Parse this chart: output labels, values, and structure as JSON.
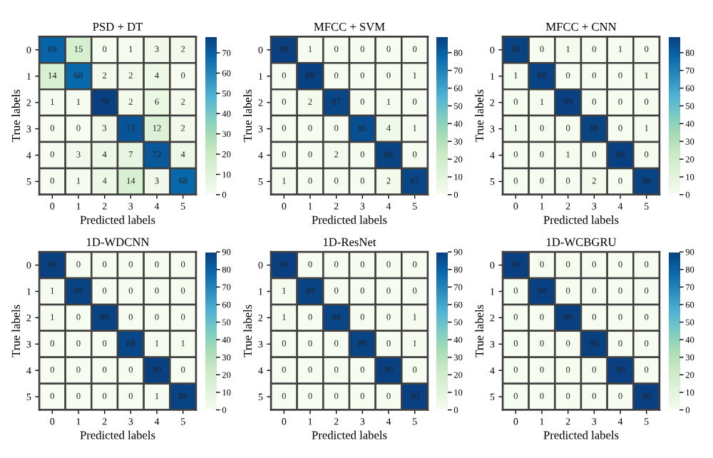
{
  "chart_data": [
    {
      "type": "heatmap",
      "title": "PSD + DT",
      "xlabel": "Predicted labels",
      "ylabel": "True labels",
      "categories": [
        "0",
        "1",
        "2",
        "3",
        "4",
        "5"
      ],
      "y_categories": [
        "0",
        "1",
        "2",
        "3",
        "4",
        "5"
      ],
      "cells": [
        [
          69,
          15,
          0,
          1,
          3,
          2
        ],
        [
          14,
          68,
          2,
          2,
          4,
          0
        ],
        [
          1,
          1,
          78,
          2,
          6,
          2
        ],
        [
          0,
          0,
          3,
          73,
          12,
          2
        ],
        [
          0,
          3,
          4,
          7,
          72,
          4
        ],
        [
          0,
          1,
          4,
          14,
          3,
          68
        ]
      ],
      "clim": [
        0,
        78
      ],
      "cticks": [
        0,
        10,
        20,
        30,
        40,
        50,
        60,
        70
      ],
      "data_labels": true
    },
    {
      "type": "heatmap",
      "title": "MFCC + SVM",
      "xlabel": "Predicted labels",
      "ylabel": "True labels",
      "categories": [
        "0",
        "1",
        "2",
        "3",
        "4",
        "5"
      ],
      "y_categories": [
        "0",
        "1",
        "2",
        "3",
        "4",
        "5"
      ],
      "cells": [
        [
          89,
          1,
          0,
          0,
          0,
          0
        ],
        [
          0,
          89,
          0,
          0,
          0,
          1
        ],
        [
          0,
          2,
          87,
          0,
          1,
          0
        ],
        [
          0,
          0,
          0,
          85,
          4,
          1
        ],
        [
          0,
          0,
          2,
          0,
          88,
          0
        ],
        [
          1,
          0,
          0,
          0,
          2,
          87
        ]
      ],
      "clim": [
        0,
        89
      ],
      "cticks": [
        0,
        10,
        20,
        30,
        40,
        50,
        60,
        70,
        80
      ],
      "data_labels": true
    },
    {
      "type": "heatmap",
      "title": "MFCC + CNN",
      "xlabel": "Predicted labels",
      "ylabel": "True labels",
      "categories": [
        "0",
        "1",
        "2",
        "3",
        "4",
        "5"
      ],
      "y_categories": [
        "0",
        "1",
        "2",
        "3",
        "4",
        "5"
      ],
      "cells": [
        [
          88,
          0,
          1,
          0,
          1,
          0
        ],
        [
          1,
          88,
          0,
          0,
          0,
          1
        ],
        [
          0,
          1,
          89,
          0,
          0,
          0
        ],
        [
          1,
          0,
          0,
          88,
          0,
          1
        ],
        [
          0,
          0,
          1,
          0,
          89,
          0
        ],
        [
          0,
          0,
          0,
          2,
          0,
          88
        ]
      ],
      "clim": [
        0,
        89
      ],
      "cticks": [
        0,
        10,
        20,
        30,
        40,
        50,
        60,
        70,
        80
      ],
      "data_labels": true
    },
    {
      "type": "heatmap",
      "title": "1D-WDCNN",
      "xlabel": "Predicted labels",
      "ylabel": "True labels",
      "categories": [
        "0",
        "1",
        "2",
        "3",
        "4",
        "5"
      ],
      "y_categories": [
        "0",
        "1",
        "2",
        "3",
        "4",
        "5"
      ],
      "cells": [
        [
          90,
          0,
          0,
          0,
          0,
          0
        ],
        [
          1,
          89,
          0,
          0,
          0,
          0
        ],
        [
          1,
          0,
          89,
          0,
          0,
          0
        ],
        [
          0,
          0,
          0,
          88,
          1,
          1
        ],
        [
          0,
          0,
          0,
          0,
          90,
          0
        ],
        [
          0,
          0,
          0,
          0,
          1,
          89
        ]
      ],
      "clim": [
        0,
        90
      ],
      "cticks": [
        0,
        10,
        20,
        30,
        40,
        50,
        60,
        70,
        80,
        90
      ],
      "data_labels": true
    },
    {
      "type": "heatmap",
      "title": "1D-ResNet",
      "xlabel": "Predicted labels",
      "ylabel": "True labels",
      "categories": [
        "0",
        "1",
        "2",
        "3",
        "4",
        "5"
      ],
      "y_categories": [
        "0",
        "1",
        "2",
        "3",
        "4",
        "5"
      ],
      "cells": [
        [
          90,
          0,
          0,
          0,
          0,
          0
        ],
        [
          1,
          89,
          0,
          0,
          0,
          0
        ],
        [
          1,
          0,
          88,
          0,
          0,
          1
        ],
        [
          0,
          0,
          0,
          89,
          0,
          1
        ],
        [
          0,
          0,
          0,
          0,
          90,
          0
        ],
        [
          0,
          0,
          0,
          0,
          0,
          90
        ]
      ],
      "clim": [
        0,
        90
      ],
      "cticks": [
        0,
        10,
        20,
        30,
        40,
        50,
        60,
        70,
        80,
        90
      ],
      "data_labels": true
    },
    {
      "type": "heatmap",
      "title": "1D-WCBGRU",
      "xlabel": "Predicted labels",
      "ylabel": "True labels",
      "categories": [
        "0",
        "1",
        "2",
        "3",
        "4",
        "5"
      ],
      "y_categories": [
        "0",
        "1",
        "2",
        "3",
        "4",
        "5"
      ],
      "cells": [
        [
          90,
          0,
          0,
          0,
          0,
          0
        ],
        [
          0,
          90,
          0,
          0,
          0,
          0
        ],
        [
          0,
          0,
          90,
          0,
          0,
          0
        ],
        [
          0,
          0,
          0,
          90,
          0,
          0
        ],
        [
          0,
          0,
          0,
          0,
          90,
          0
        ],
        [
          0,
          0,
          0,
          0,
          0,
          90
        ]
      ],
      "clim": [
        0,
        90
      ],
      "cticks": [
        0,
        10,
        20,
        30,
        40,
        50,
        60,
        70,
        80,
        90
      ],
      "data_labels": true
    }
  ]
}
